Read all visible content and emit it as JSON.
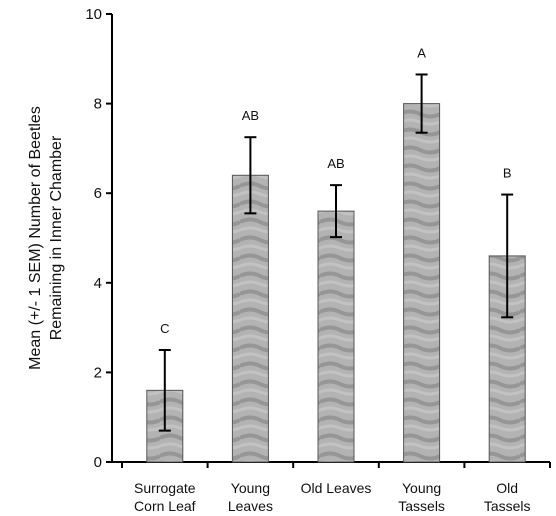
{
  "chart_data": {
    "type": "bar",
    "title": "",
    "xlabel": "",
    "ylabel": [
      "Mean (+/- 1 SEM) Number of Beetles",
      "Remaining in Inner Chamber"
    ],
    "ylim": [
      0,
      10
    ],
    "yticks": [
      0,
      2,
      4,
      6,
      8,
      10
    ],
    "grid": false,
    "categories": [
      [
        "Surrogate",
        "Corn Leaf"
      ],
      [
        "Young",
        "Leaves"
      ],
      [
        "Old Leaves"
      ],
      [
        "Young",
        "Tassels"
      ],
      [
        "Old",
        "Tassels"
      ]
    ],
    "values": [
      1.6,
      6.4,
      5.6,
      8.0,
      4.6
    ],
    "error": [
      0.9,
      0.85,
      0.58,
      0.65,
      1.37
    ],
    "significance_letters": [
      "C",
      "AB",
      "AB",
      "A",
      "B"
    ],
    "colors": {
      "bar": "#a9a9a9",
      "bar_pattern": "#8f8f8f",
      "axis": "#000000"
    }
  }
}
